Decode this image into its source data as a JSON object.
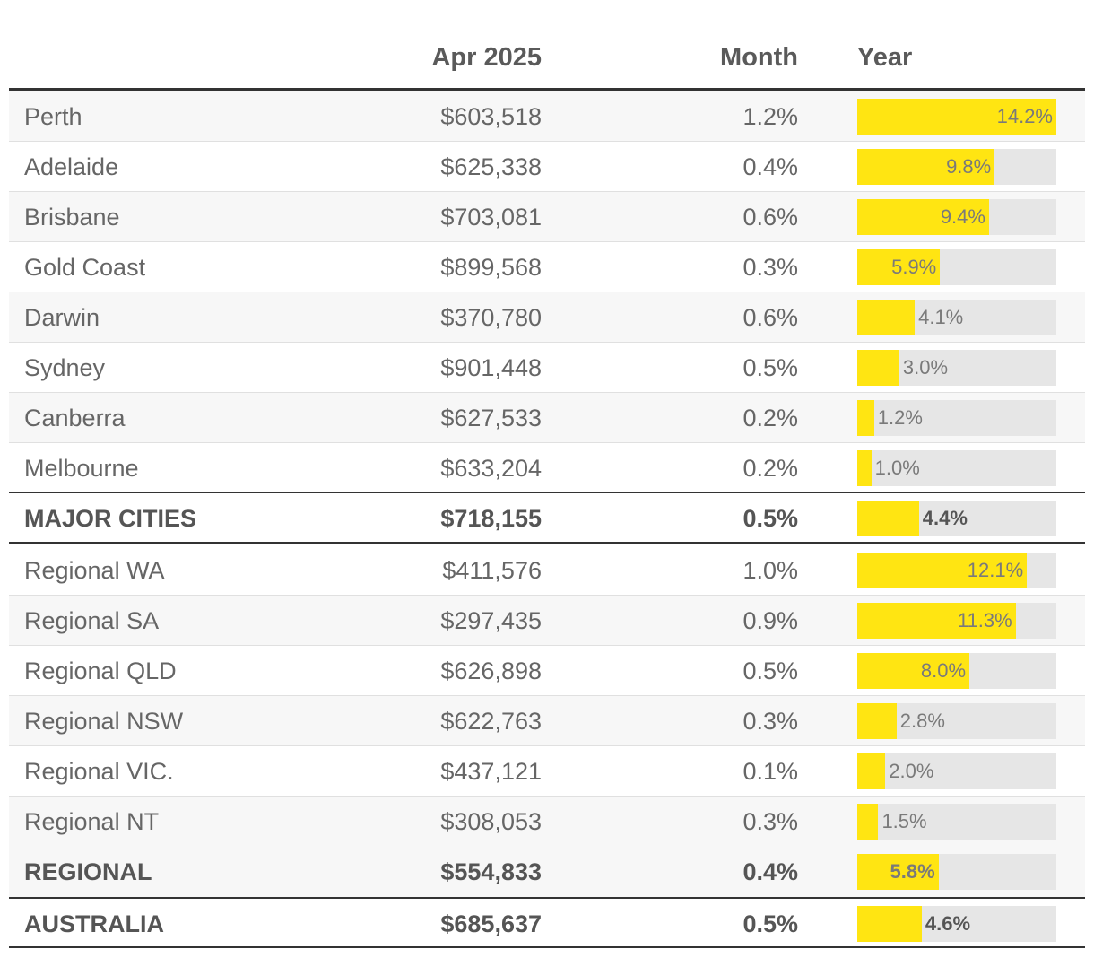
{
  "chart_data": {
    "type": "table",
    "columns": [
      "",
      "Apr 2025",
      "Month",
      "Year"
    ],
    "rows": [
      {
        "name": "Perth",
        "price": "$603,518",
        "month": "1.2%",
        "year": "14.2%",
        "year_value": 14.2,
        "total": false
      },
      {
        "name": "Adelaide",
        "price": "$625,338",
        "month": "0.4%",
        "year": "9.8%",
        "year_value": 9.8,
        "total": false
      },
      {
        "name": "Brisbane",
        "price": "$703,081",
        "month": "0.6%",
        "year": "9.4%",
        "year_value": 9.4,
        "total": false
      },
      {
        "name": "Gold Coast",
        "price": "$899,568",
        "month": "0.3%",
        "year": "5.9%",
        "year_value": 5.9,
        "total": false
      },
      {
        "name": "Darwin",
        "price": "$370,780",
        "month": "0.6%",
        "year": "4.1%",
        "year_value": 4.1,
        "total": false
      },
      {
        "name": "Sydney",
        "price": "$901,448",
        "month": "0.5%",
        "year": "3.0%",
        "year_value": 3.0,
        "total": false
      },
      {
        "name": "Canberra",
        "price": "$627,533",
        "month": "0.2%",
        "year": "1.2%",
        "year_value": 1.2,
        "total": false
      },
      {
        "name": "Melbourne",
        "price": "$633,204",
        "month": "0.2%",
        "year": "1.0%",
        "year_value": 1.0,
        "total": false
      },
      {
        "name": "MAJOR CITIES",
        "price": "$718,155",
        "month": "0.5%",
        "year": "4.4%",
        "year_value": 4.4,
        "total": true
      },
      {
        "name": "Regional WA",
        "price": "$411,576",
        "month": "1.0%",
        "year": "12.1%",
        "year_value": 12.1,
        "total": false
      },
      {
        "name": "Regional SA",
        "price": "$297,435",
        "month": "0.9%",
        "year": "11.3%",
        "year_value": 11.3,
        "total": false
      },
      {
        "name": "Regional QLD",
        "price": "$626,898",
        "month": "0.5%",
        "year": "8.0%",
        "year_value": 8.0,
        "total": false
      },
      {
        "name": "Regional NSW",
        "price": "$622,763",
        "month": "0.3%",
        "year": "2.8%",
        "year_value": 2.8,
        "total": false
      },
      {
        "name": "Regional VIC.",
        "price": "$437,121",
        "month": "0.1%",
        "year": "2.0%",
        "year_value": 2.0,
        "total": false
      },
      {
        "name": "Regional NT",
        "price": "$308,053",
        "month": "0.3%",
        "year": "1.5%",
        "year_value": 1.5,
        "total": false
      },
      {
        "name": "REGIONAL",
        "price": "$554,833",
        "month": "0.4%",
        "year": "5.8%",
        "year_value": 5.8,
        "total": true
      },
      {
        "name": "AUSTRALIA",
        "price": "$685,637",
        "month": "0.5%",
        "year": "4.6%",
        "year_value": 4.6,
        "total": true
      }
    ],
    "year_bar_max": 14.2
  },
  "colors": {
    "bar": "#ffe512",
    "track": "#e6e6e6",
    "text": "#666666"
  }
}
